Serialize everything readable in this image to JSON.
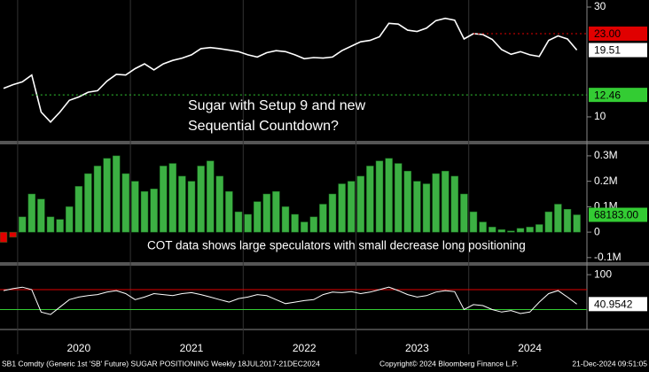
{
  "chart_data": [
    {
      "type": "line",
      "log": true,
      "color": "#ffffff",
      "values": [
        13.3,
        13.8,
        14.2,
        15.2,
        10.5,
        9.5,
        10.5,
        11.8,
        12.2,
        12.8,
        13.0,
        14.3,
        15.3,
        15.2,
        16.2,
        17.0,
        16.0,
        17.0,
        17.6,
        18.0,
        18.6,
        19.8,
        20.0,
        19.8,
        19.5,
        19.2,
        18.6,
        18.2,
        19.0,
        19.4,
        19.2,
        18.6,
        17.9,
        18.1,
        18.0,
        18.2,
        19.4,
        20.3,
        21.2,
        21.5,
        22.3,
        25.5,
        25.3,
        23.8,
        23.5,
        24.3,
        26.2,
        26.8,
        26.3,
        21.8,
        23.0,
        22.8,
        21.7,
        19.6,
        18.7,
        19.2,
        18.6,
        18.3,
        21.5,
        22.5,
        21.8,
        19.51
      ],
      "ylim": [
        7.8,
        32.2
      ],
      "yticks": [
        10,
        30
      ],
      "annotations": [
        "Sugar with Setup 9 and new",
        "Sequential Countdown?"
      ],
      "tags": [
        {
          "value": 23,
          "label": "23.00",
          "color": "#e00000",
          "dotted": true
        },
        {
          "value": 19.51,
          "label": "19.51",
          "color": "#ffffff",
          "dotted": false
        },
        {
          "value": 12.46,
          "label": "12.46",
          "color": "#33cc33",
          "dotted": true
        }
      ]
    },
    {
      "type": "bar",
      "color": "#3cb043",
      "negative_color": "#e00000",
      "values": [
        -40000,
        -20000,
        60000,
        150000,
        130000,
        60000,
        50000,
        100000,
        180000,
        230000,
        260000,
        290000,
        300000,
        230000,
        200000,
        160000,
        170000,
        260000,
        270000,
        220000,
        200000,
        260000,
        280000,
        220000,
        160000,
        80000,
        70000,
        120000,
        150000,
        160000,
        100000,
        70000,
        40000,
        60000,
        110000,
        150000,
        190000,
        200000,
        220000,
        260000,
        280000,
        290000,
        270000,
        240000,
        200000,
        190000,
        230000,
        240000,
        220000,
        150000,
        80000,
        40000,
        20000,
        10000,
        5000,
        15000,
        20000,
        30000,
        80000,
        110000,
        90000,
        68183
      ],
      "ylim": [
        -118000,
        345000
      ],
      "yticks": [
        {
          "value": 300000,
          "label": "0.3M"
        },
        {
          "value": 200000,
          "label": "0.2M"
        },
        {
          "value": 100000,
          "label": "0.1M"
        },
        0,
        {
          "value": -100000,
          "label": "-0.1M"
        }
      ],
      "annotations": [
        "COT data shows large speculators with small decrease long positioning"
      ],
      "tags": [
        {
          "value": 68183,
          "label": "68183.00",
          "color": "#33cc33",
          "dotted": false
        }
      ]
    },
    {
      "type": "line",
      "color": "#ffffff",
      "categories": [
        null,
        null,
        null,
        null,
        null,
        null,
        null,
        null,
        "2020",
        null,
        null,
        null,
        null,
        null,
        null,
        null,
        null,
        null,
        null,
        null,
        "2021",
        null,
        null,
        null,
        null,
        null,
        null,
        null,
        null,
        null,
        null,
        null,
        "2022",
        null,
        null,
        null,
        null,
        null,
        null,
        null,
        null,
        null,
        null,
        null,
        "2023",
        null,
        null,
        null,
        null,
        null,
        null,
        null,
        null,
        null,
        null,
        null,
        "2024",
        null,
        null,
        null,
        null,
        null
      ],
      "values": [
        68,
        72,
        75,
        70,
        25,
        20,
        35,
        50,
        55,
        58,
        60,
        65,
        68,
        62,
        50,
        55,
        62,
        60,
        58,
        62,
        64,
        60,
        55,
        50,
        45,
        52,
        55,
        60,
        58,
        50,
        42,
        45,
        48,
        50,
        60,
        65,
        64,
        66,
        62,
        65,
        70,
        75,
        68,
        60,
        55,
        58,
        65,
        68,
        66,
        30,
        40,
        38,
        30,
        25,
        28,
        22,
        25,
        45,
        62,
        68,
        55,
        40.9542
      ],
      "ylim": [
        -10,
        118
      ],
      "yticks": [
        100
      ],
      "levels": [
        {
          "value": 70,
          "color": "#e00000"
        },
        {
          "value": 30,
          "color": "#33cc33"
        }
      ],
      "tags": [
        {
          "value": 40.9542,
          "label": "40.9542",
          "color": "#ffffff",
          "dotted": false
        }
      ]
    }
  ],
  "footer": [
    "SB1 Comdty (Generic 1st 'SB' Future) SUGAR POSITIONING  Weekly 18JUL2017-21DEC2024",
    "Copyright© 2024 Bloomberg Finance L.P.",
    "21-Dec-2024 09:51:05"
  ]
}
